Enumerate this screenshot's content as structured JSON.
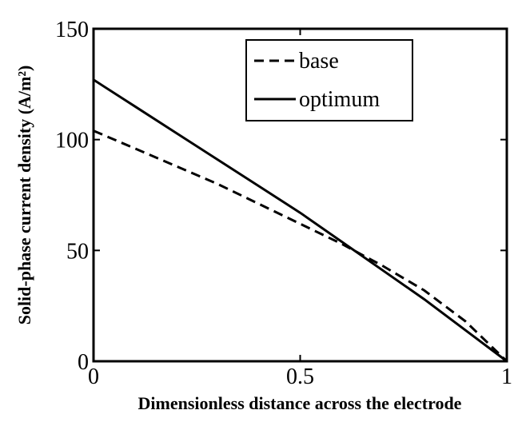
{
  "chart_data": {
    "type": "line",
    "xlabel": "Dimensionless distance across the electrode",
    "ylabel": "Solid-phase current density (A/m²)",
    "x": [
      0,
      0.1,
      0.2,
      0.3,
      0.4,
      0.5,
      0.6,
      0.7,
      0.8,
      0.9,
      1
    ],
    "series": [
      {
        "name": "base",
        "color": "#000000",
        "dash": "dashed",
        "values": [
          104,
          96,
          88,
          80,
          71,
          62,
          53,
          43,
          32,
          18,
          0
        ]
      },
      {
        "name": "optimum",
        "color": "#000000",
        "dash": "solid",
        "values": [
          127,
          115,
          103,
          91,
          79,
          67,
          54,
          41,
          28,
          14,
          0
        ]
      }
    ],
    "xlim": [
      0,
      1
    ],
    "xticks": [
      0,
      0.5,
      1
    ],
    "ylim": [
      0,
      150
    ],
    "yticks": [
      0,
      50,
      100,
      150
    ],
    "grid": false,
    "legend": "upper center"
  }
}
